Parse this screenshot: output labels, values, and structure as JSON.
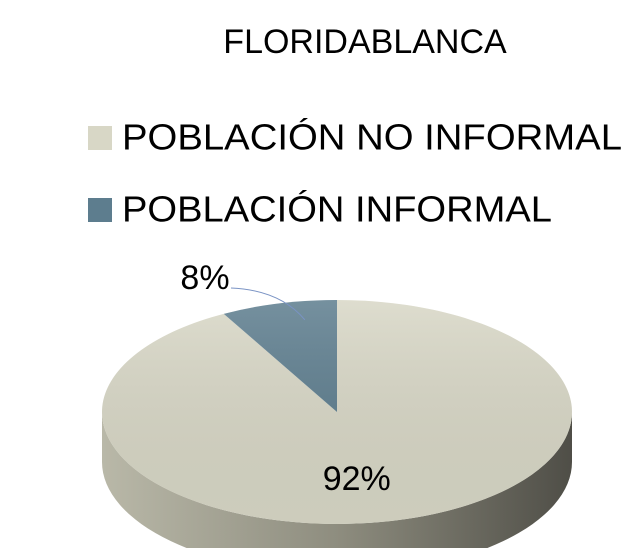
{
  "chart_data": {
    "type": "pie",
    "title": "FLORIDABLANCA",
    "categories": [
      "POBLACIÓN NO INFORMAL",
      "POBLACIÓN INFORMAL"
    ],
    "values": [
      92,
      8
    ],
    "value_labels": [
      "92%",
      "8%"
    ],
    "colors": [
      "#d8d7c6",
      "#5d7d8e"
    ],
    "legend": "top"
  }
}
